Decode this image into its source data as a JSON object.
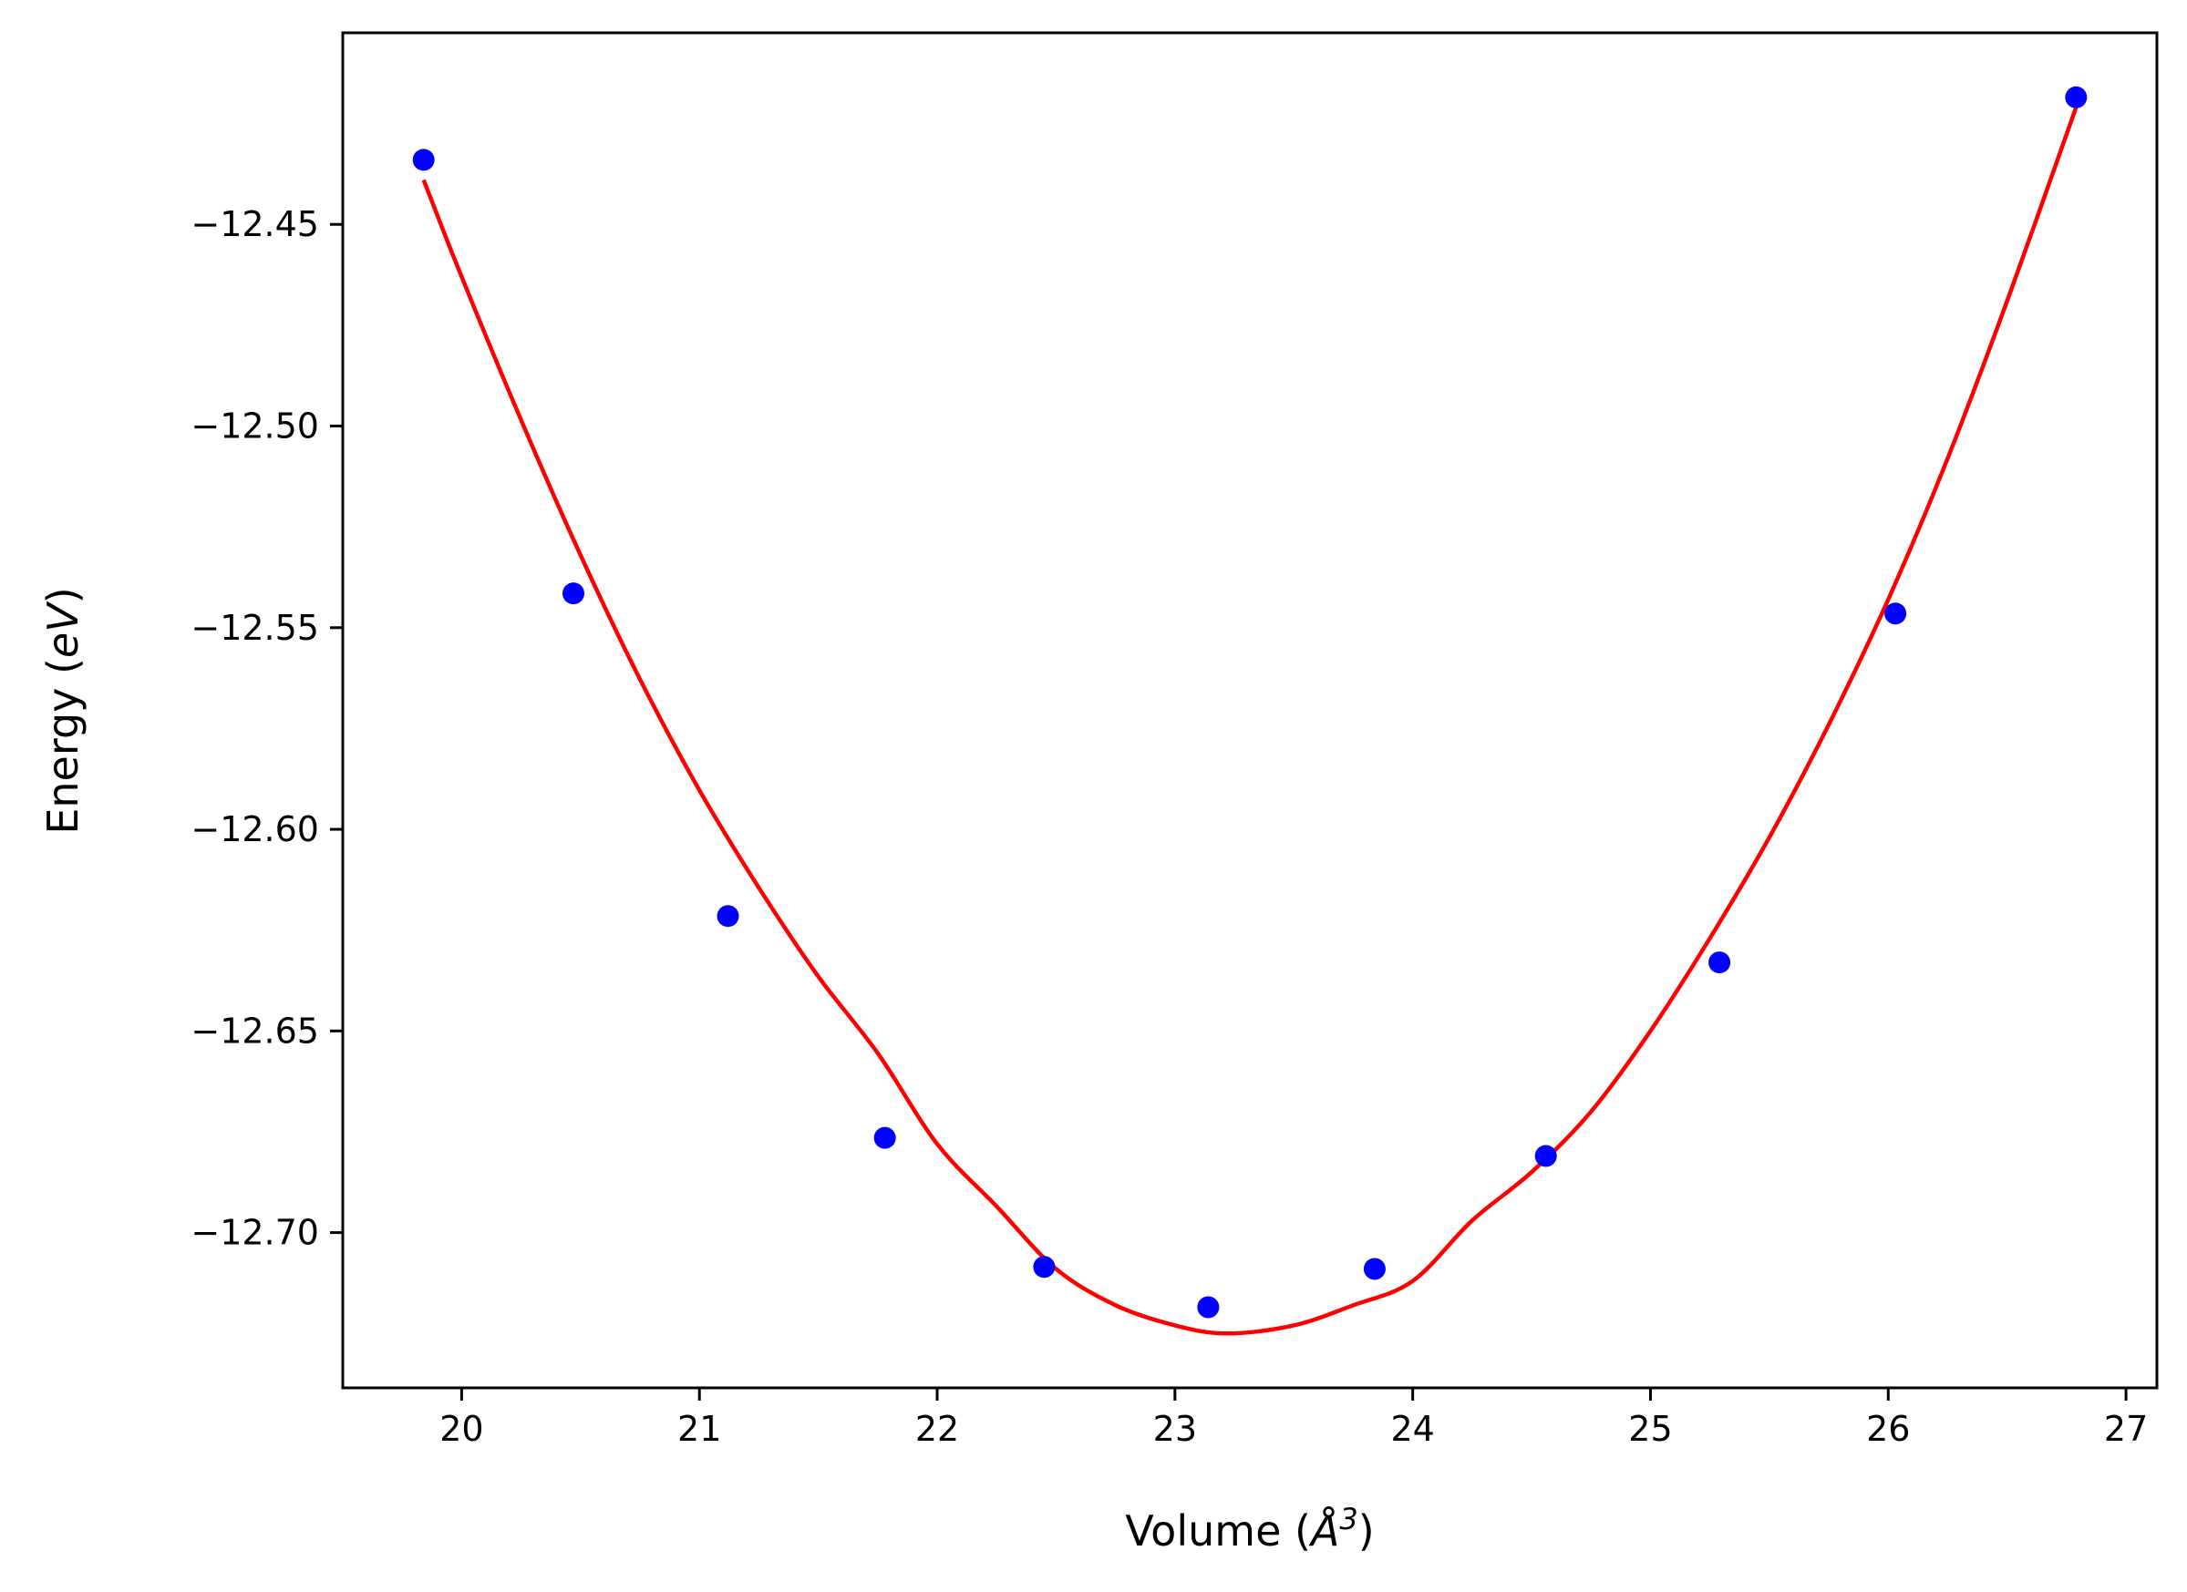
{
  "chart_data": {
    "type": "scatter",
    "xlabel_prefix": "Volume (",
    "xlabel_unit": "Å",
    "xlabel_power": "3",
    "xlabel_suffix": ")",
    "ylabel_prefix": "Energy (",
    "ylabel_unit": "eV",
    "ylabel_suffix": ")",
    "xlim": [
      19.5,
      27.13
    ],
    "ylim": [
      -12.7385,
      -12.4025
    ],
    "xticks": [
      20,
      21,
      22,
      23,
      24,
      25,
      26,
      27
    ],
    "yticks": [
      -12.7,
      -12.65,
      -12.6,
      -12.55,
      -12.5,
      -12.45
    ],
    "ytick_labels": [
      "−12.70",
      "−12.65",
      "−12.60",
      "−12.55",
      "−12.50",
      "−12.45"
    ],
    "grid": false,
    "series": [
      {
        "kind": "points",
        "color": "#0000ff",
        "x": [
          19.84,
          20.47,
          21.12,
          21.78,
          22.45,
          23.14,
          23.84,
          24.56,
          25.29,
          26.03,
          26.79
        ],
        "y": [
          -12.434,
          -12.5415,
          -12.6215,
          -12.6765,
          -12.7085,
          -12.7185,
          -12.709,
          -12.681,
          -12.633,
          -12.5465,
          -12.4185
        ]
      },
      {
        "kind": "fit",
        "color": "#ff0000",
        "x": [
          19.84,
          20.0,
          20.25,
          20.5,
          20.75,
          21.0,
          21.25,
          21.5,
          21.75,
          22.0,
          22.25,
          22.5,
          22.75,
          23.0,
          23.22,
          23.5,
          23.75,
          24.0,
          24.25,
          24.5,
          24.75,
          25.0,
          25.25,
          25.5,
          25.75,
          26.0,
          26.25,
          26.5,
          26.79
        ],
        "y": [
          -12.439,
          -12.463,
          -12.4985,
          -12.532,
          -12.5628,
          -12.5903,
          -12.6145,
          -12.6365,
          -12.6555,
          -12.678,
          -12.6935,
          -12.709,
          -12.718,
          -12.723,
          -12.725,
          -12.723,
          -12.718,
          -12.712,
          -12.697,
          -12.685,
          -12.67,
          -12.65,
          -12.627,
          -12.602,
          -12.574,
          -12.543,
          -12.508,
          -12.469,
          -12.421
        ]
      }
    ]
  }
}
